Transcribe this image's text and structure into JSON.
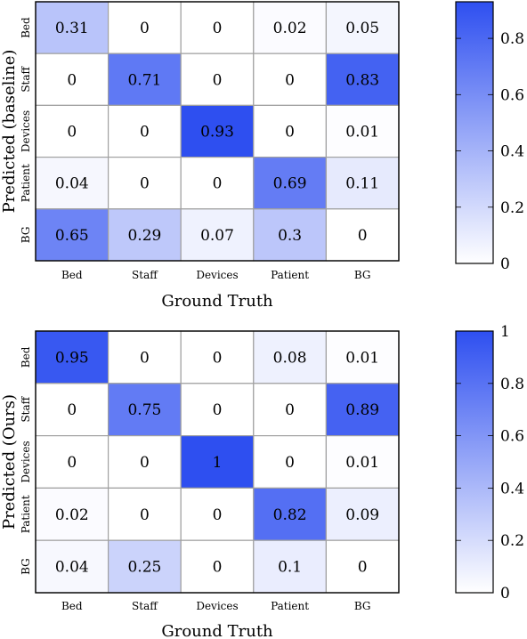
{
  "chart_data": [
    {
      "type": "heatmap",
      "xlabel": "Ground Truth",
      "ylabel": "Predicted (baseline)",
      "x_categories": [
        "Bed",
        "Staff",
        "Devices",
        "Patient",
        "BG"
      ],
      "y_categories": [
        "Bed",
        "Staff",
        "Devices",
        "Patient",
        "BG"
      ],
      "values": [
        [
          0.31,
          0,
          0,
          0.02,
          0.05
        ],
        [
          0,
          0.71,
          0,
          0,
          0.83
        ],
        [
          0,
          0,
          0.93,
          0,
          0.01
        ],
        [
          0.04,
          0,
          0,
          0.69,
          0.11
        ],
        [
          0.65,
          0.29,
          0.07,
          0.3,
          0
        ]
      ],
      "value_labels": [
        [
          "0.31",
          "0",
          "0",
          "0.02",
          "0.05"
        ],
        [
          "0",
          "0.71",
          "0",
          "0",
          "0.83"
        ],
        [
          "0",
          "0",
          "0.93",
          "0",
          "0.01"
        ],
        [
          "0.04",
          "0",
          "0",
          "0.69",
          "0.11"
        ],
        [
          "0.65",
          "0.29",
          "0.07",
          "0.3",
          "0"
        ]
      ],
      "colorbar": {
        "min": 0,
        "max": 0.93,
        "ticks": [
          0,
          0.2,
          0.4,
          0.6,
          0.8
        ],
        "tick_labels": [
          "0",
          "0.2",
          "0.4",
          "0.6",
          "0.8"
        ]
      }
    },
    {
      "type": "heatmap",
      "xlabel": "Ground Truth",
      "ylabel": "Predicted (Ours)",
      "x_categories": [
        "Bed",
        "Staff",
        "Devices",
        "Patient",
        "BG"
      ],
      "y_categories": [
        "Bed",
        "Staff",
        "Devices",
        "Patient",
        "BG"
      ],
      "values": [
        [
          0.95,
          0,
          0,
          0.08,
          0.01
        ],
        [
          0,
          0.75,
          0,
          0,
          0.89
        ],
        [
          0,
          0,
          1,
          0,
          0.01
        ],
        [
          0.02,
          0,
          0,
          0.82,
          0.09
        ],
        [
          0.04,
          0.25,
          0,
          0.1,
          0
        ]
      ],
      "value_labels": [
        [
          "0.95",
          "0",
          "0",
          "0.08",
          "0.01"
        ],
        [
          "0",
          "0.75",
          "0",
          "0",
          "0.89"
        ],
        [
          "0",
          "0",
          "1",
          "0",
          "0.01"
        ],
        [
          "0.02",
          "0",
          "0",
          "0.82",
          "0.09"
        ],
        [
          "0.04",
          "0.25",
          "0",
          "0.1",
          "0"
        ]
      ],
      "colorbar": {
        "min": 0,
        "max": 1,
        "ticks": [
          0,
          0.2,
          0.4,
          0.6,
          0.8,
          1
        ],
        "tick_labels": [
          "0",
          "0.2",
          "0.4",
          "0.6",
          "0.8",
          "1"
        ]
      }
    }
  ],
  "colors": {
    "low": "#ffffff",
    "high": "#2e4ff0",
    "grid": "#a0a0a0",
    "frame": "#000000"
  }
}
